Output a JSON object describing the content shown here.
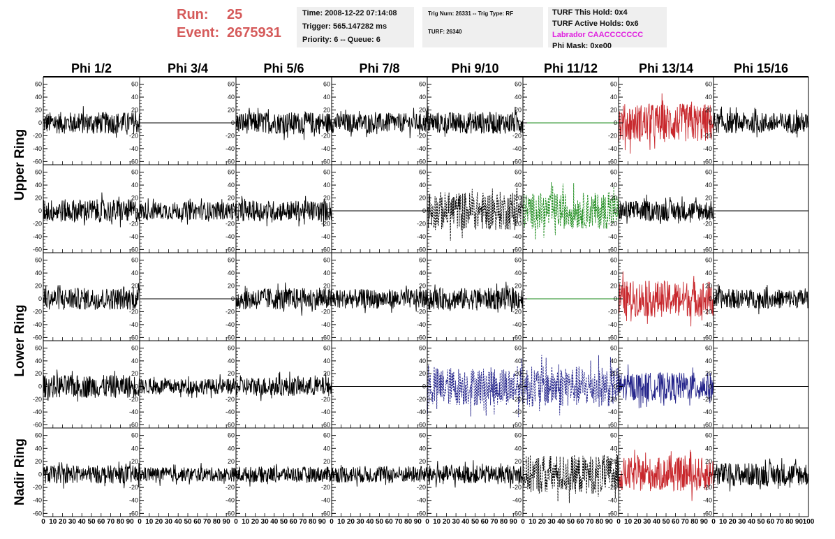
{
  "header": {
    "run_label": "Run:",
    "run_value": "25",
    "event_label": "Event:",
    "event_value": "2675931"
  },
  "info_box_1": {
    "time": "Time: 2008-12-22 07:14:08",
    "trigger": "Trigger: 565.147282 ms",
    "priority": "Priority: 6 -- Queue: 6"
  },
  "info_box_2": {
    "trig": "Trig Num: 26331 -- Trig Type: RF",
    "turf": "TURF: 26340"
  },
  "info_box_3": {
    "this_hold": "TURF This Hold: 0x4",
    "active_holds": "TURF Active Holds: 0x6",
    "labrador": "Labrador CAACCCCCCC",
    "phi_mask": "Phi Mask: 0xe00"
  },
  "colors": {
    "header_red": "#d55a5a",
    "black": "#000000",
    "red": "#c8282d",
    "green": "#1a8a1a",
    "blue": "#23238a",
    "magenta": "#e020e0",
    "info_bg": "#efefef"
  },
  "chart_data": {
    "type": "line",
    "columns": [
      "Phi 1/2",
      "Phi 3/4",
      "Phi 5/6",
      "Phi 7/8",
      "Phi 9/10",
      "Phi 11/12",
      "Phi 13/14",
      "Phi 15/16"
    ],
    "row_groups": [
      "Upper Ring",
      "Lower Ring",
      "Nadir Ring"
    ],
    "ylim": [
      -65,
      65
    ],
    "y_ticks": [
      -60,
      -40,
      -20,
      0,
      20,
      40,
      60
    ],
    "xlim": [
      0,
      100
    ],
    "x_tick_labels": [
      "0",
      "10",
      "20",
      "30",
      "40",
      "50",
      "60",
      "70",
      "80",
      "90",
      "100"
    ],
    "panels": [
      [
        {
          "style": "solid",
          "color": "black",
          "amplitude": 17
        },
        {
          "style": "flat",
          "color": "black"
        },
        {
          "style": "solid",
          "color": "black",
          "amplitude": 17
        },
        {
          "style": "solid",
          "color": "black",
          "amplitude": 15
        },
        {
          "style": "solid",
          "color": "black",
          "amplitude": 17
        },
        {
          "style": "flat",
          "color": "green"
        },
        {
          "style": "solid",
          "color": "red",
          "amplitude": 30
        },
        {
          "style": "solid",
          "color": "black",
          "amplitude": 16
        }
      ],
      [
        {
          "style": "solid",
          "color": "black",
          "amplitude": 18
        },
        {
          "style": "solid",
          "color": "black",
          "amplitude": 14
        },
        {
          "style": "solid",
          "color": "black",
          "amplitude": 16
        },
        {
          "style": "flat",
          "color": "black"
        },
        {
          "style": "dashed",
          "color": "black",
          "amplitude": 30
        },
        {
          "style": "dashed",
          "color": "green",
          "amplitude": 28
        },
        {
          "style": "solid",
          "color": "black",
          "amplitude": 16
        },
        {
          "style": "flat",
          "color": "black"
        }
      ],
      [
        {
          "style": "solid",
          "color": "black",
          "amplitude": 17
        },
        {
          "style": "flat",
          "color": "black"
        },
        {
          "style": "solid",
          "color": "black",
          "amplitude": 17
        },
        {
          "style": "solid",
          "color": "black",
          "amplitude": 15
        },
        {
          "style": "solid",
          "color": "black",
          "amplitude": 17
        },
        {
          "style": "flat",
          "color": "green"
        },
        {
          "style": "solid",
          "color": "red",
          "amplitude": 28
        },
        {
          "style": "solid",
          "color": "black",
          "amplitude": 15
        }
      ],
      [
        {
          "style": "solid",
          "color": "black",
          "amplitude": 18
        },
        {
          "style": "solid",
          "color": "black",
          "amplitude": 12
        },
        {
          "style": "solid",
          "color": "black",
          "amplitude": 15
        },
        {
          "style": "flat",
          "color": "black"
        },
        {
          "style": "dashed",
          "color": "blue",
          "amplitude": 30
        },
        {
          "style": "dashed",
          "color": "blue",
          "amplitude": 32
        },
        {
          "style": "solid",
          "color": "blue",
          "amplitude": 22
        },
        {
          "style": "flat",
          "color": "black"
        }
      ],
      [
        {
          "style": "solid",
          "color": "black",
          "amplitude": 14
        },
        {
          "style": "solid",
          "color": "black",
          "amplitude": 11
        },
        {
          "style": "solid",
          "color": "black",
          "amplitude": 12
        },
        {
          "style": "solid",
          "color": "black",
          "amplitude": 13
        },
        {
          "style": "solid",
          "color": "black",
          "amplitude": 14
        },
        {
          "style": "dashed",
          "color": "black",
          "amplitude": 30
        },
        {
          "style": "solid",
          "color": "red",
          "amplitude": 26
        },
        {
          "style": "solid",
          "color": "black",
          "amplitude": 18
        }
      ]
    ]
  }
}
